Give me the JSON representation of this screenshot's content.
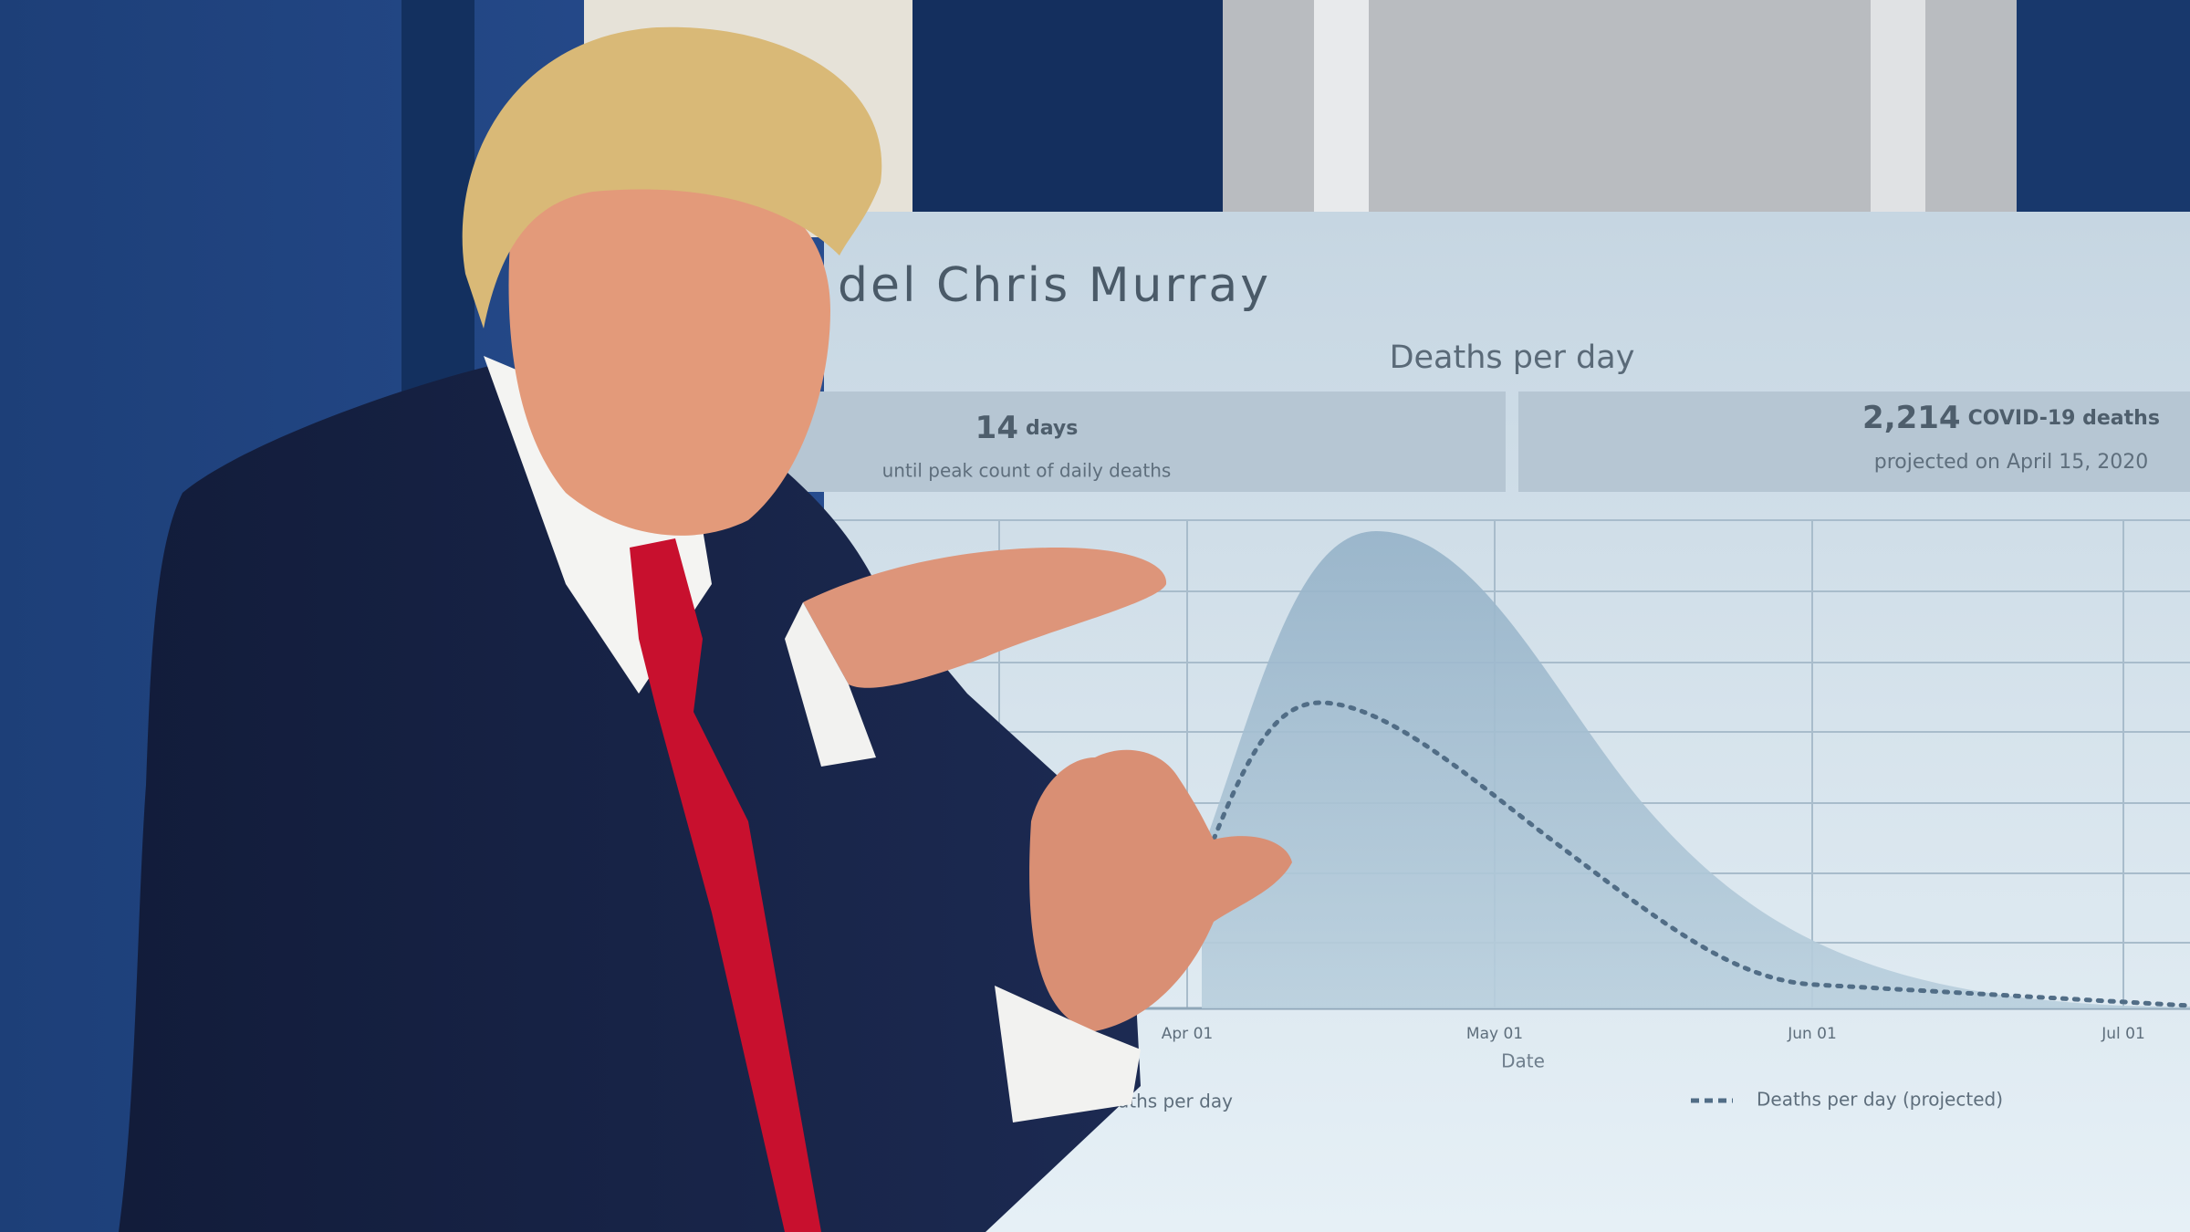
{
  "screen": {
    "title": "del Chris Murray",
    "chart_heading": "Deaths per day",
    "stat_left": {
      "number": "14",
      "unit": "days",
      "caption": "until peak count of daily deaths"
    },
    "stat_right": {
      "number": "2,214",
      "unit": "COVID-19 deaths",
      "caption": "projected on April 15, 2020"
    },
    "x_labels": [
      "Apr 01",
      "May 01",
      "Jun 01",
      "Jul 01"
    ],
    "x_axis_title": "Date",
    "legend": [
      "aths per day",
      "Deaths per day (projected)"
    ]
  }
}
